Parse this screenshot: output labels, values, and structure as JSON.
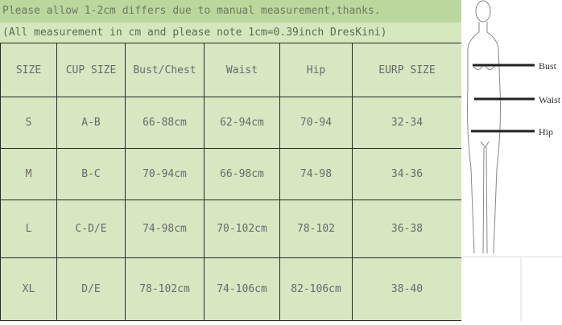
{
  "notes": {
    "line1": "Please allow 1-2cm differs due to manual measurement,thanks.",
    "line2": "(All measurement in cm and please note 1cm=0.39inch DresKini)"
  },
  "table": {
    "headers": [
      "SIZE",
      "CUP SIZE",
      "Bust/Chest",
      "Waist",
      "Hip",
      "EURP SIZE"
    ],
    "rows": [
      [
        "S",
        "A-B",
        "66-88cm",
        "62-94cm",
        "70-94",
        "32-34"
      ],
      [
        "M",
        "B-C",
        "70-94cm",
        "66-98cm",
        "74-98",
        "34-36"
      ],
      [
        "L",
        "C-D/E",
        "74-98cm",
        "70-102cm",
        "78-102",
        "36-38"
      ],
      [
        "XL",
        "D/E",
        "78-102cm",
        "74-106cm",
        "82-106cm",
        "38-40"
      ]
    ]
  },
  "figure": {
    "labels": [
      "Bust",
      "Waist",
      "Hip"
    ]
  },
  "colors": {
    "note1_bg": "#bcd79e",
    "note2_bg": "#d5e8bd",
    "table_bg": "#d6e7c1"
  }
}
